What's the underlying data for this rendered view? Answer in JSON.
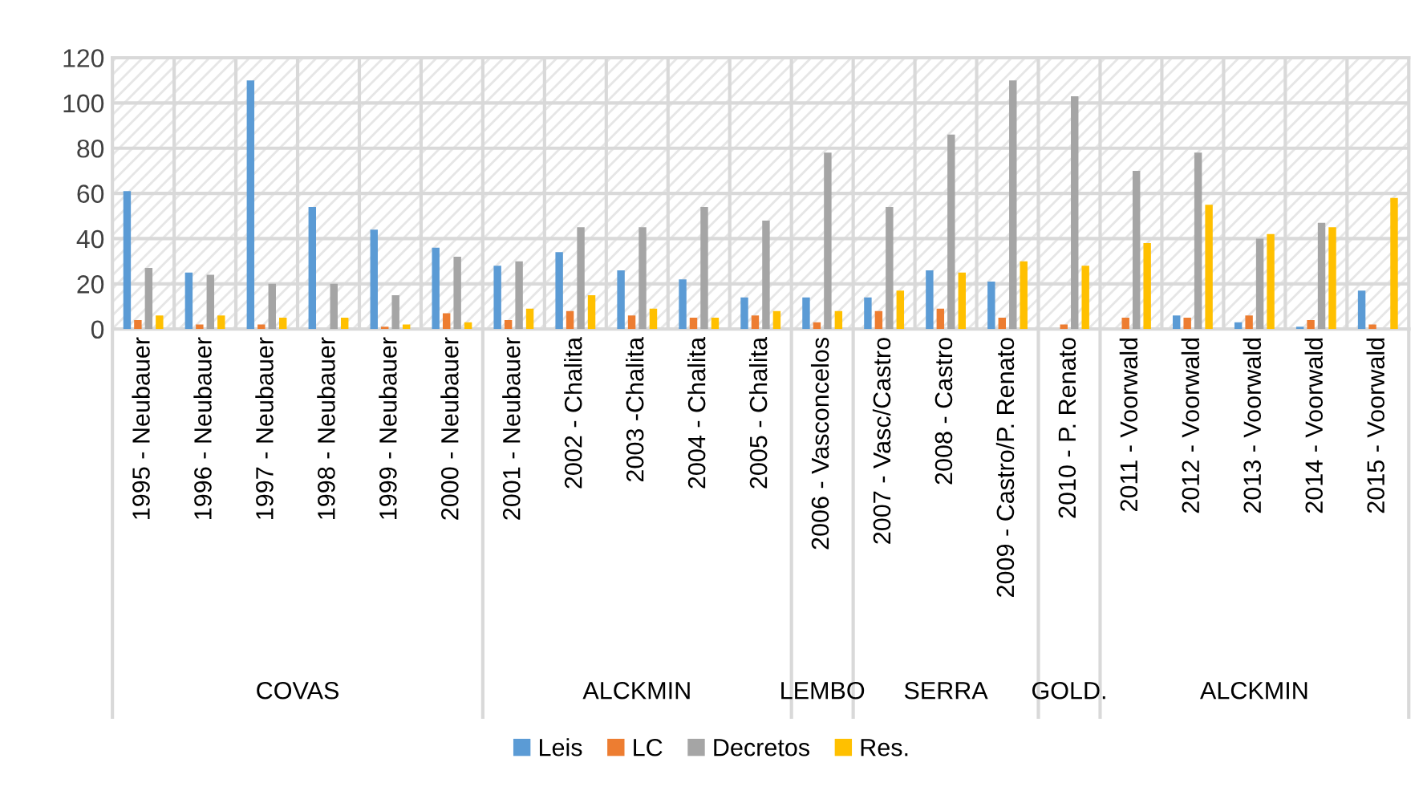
{
  "chart_data": {
    "type": "bar",
    "categories": [
      "1995 - Neubauer",
      "1996 - Neubauer",
      "1997 - Neubauer",
      "1998 - Neubauer",
      "1999 - Neubauer",
      "2000 - Neubauer",
      "2001 - Neubauer",
      "2002 - Chalita",
      "2003 -Chalita",
      "2004 - Chalita",
      "2005 - Chalita",
      "2006 - Vasconcelos",
      "2007 - Vasc/Castro",
      "2008 - Castro",
      "2009 - Castro/P. Renato",
      "2010 - P. Renato",
      "2011 - Voorwald",
      "2012 - Voorwald",
      "2013 - Voorwald",
      "2014 - Voorwald",
      "2015 - Voorwald"
    ],
    "series": [
      {
        "name": "Leis",
        "color": "#5b9bd5",
        "values": [
          61,
          25,
          110,
          54,
          44,
          36,
          28,
          34,
          26,
          22,
          14,
          14,
          14,
          26,
          21,
          0,
          0,
          6,
          3,
          1,
          17
        ]
      },
      {
        "name": "LC",
        "color": "#ed7d31",
        "values": [
          4,
          2,
          2,
          0,
          1,
          7,
          4,
          8,
          6,
          5,
          6,
          3,
          8,
          9,
          5,
          2,
          5,
          5,
          6,
          4,
          2
        ]
      },
      {
        "name": "Decretos",
        "color": "#a5a5a5",
        "values": [
          27,
          24,
          20,
          20,
          15,
          32,
          30,
          45,
          45,
          54,
          48,
          78,
          54,
          86,
          110,
          103,
          70,
          78,
          40,
          47,
          0
        ]
      },
      {
        "name": "Res.",
        "color": "#ffc000",
        "values": [
          6,
          6,
          5,
          5,
          2,
          3,
          9,
          15,
          9,
          5,
          8,
          8,
          17,
          25,
          30,
          28,
          38,
          55,
          42,
          45,
          58
        ]
      }
    ],
    "ylim": [
      0,
      120
    ],
    "yticks": [
      0,
      20,
      40,
      60,
      80,
      100,
      120
    ],
    "grid": true,
    "legend": "bottom",
    "annotations": [
      "COVAS",
      "ALCKMIN",
      "LEMBO",
      "SERRA",
      "GOLD.",
      "ALCKMIN"
    ]
  }
}
